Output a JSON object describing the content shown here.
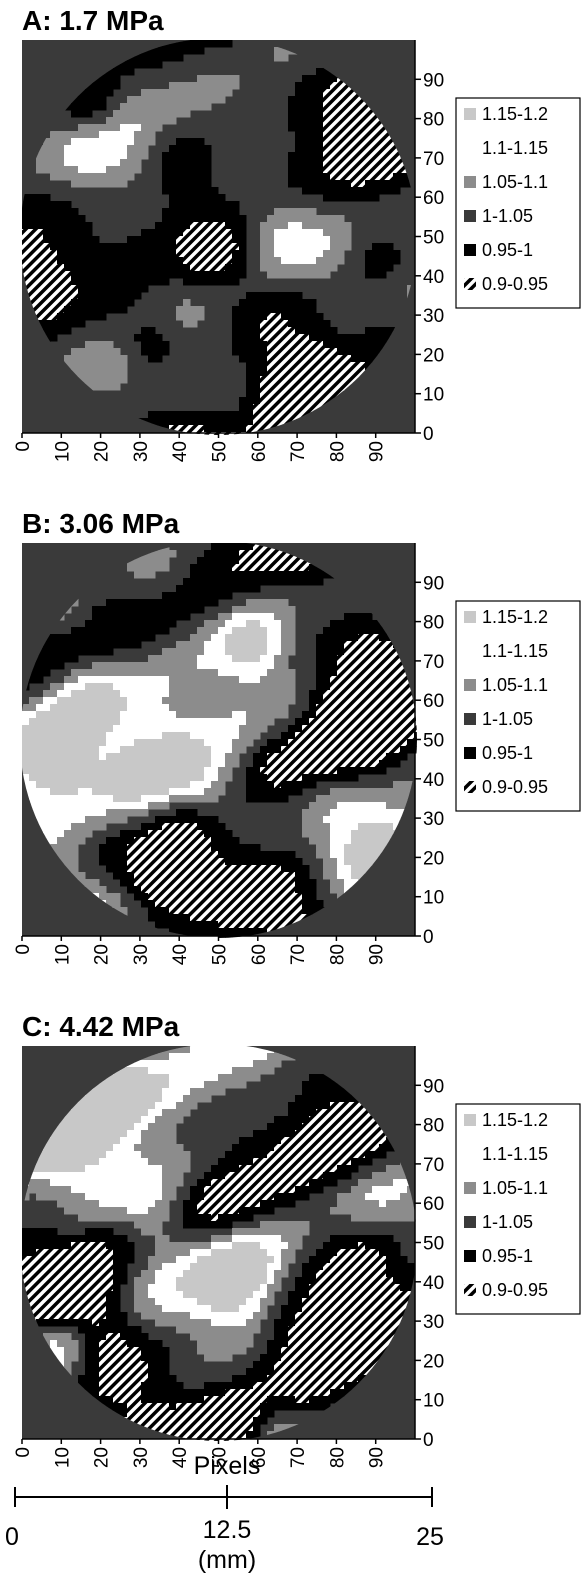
{
  "colors": {
    "background": "#3a3a3a",
    "levels": [
      "#c8c8c8",
      "#ffffff",
      "#8c8c8c",
      "#3a3a3a",
      "#000000"
    ],
    "hatch_fg": "#ffffff",
    "hatch_bg": "#000000"
  },
  "chart_data": [
    {
      "type": "heatmap",
      "title": "A: 1.7 MPa",
      "x_ticks": [
        "0",
        "10",
        "20",
        "30",
        "40",
        "50",
        "60",
        "70",
        "80",
        "90"
      ],
      "y_ticks": [
        "0",
        "10",
        "20",
        "30",
        "40",
        "50",
        "60",
        "70",
        "80",
        "90"
      ],
      "xlim": [
        0,
        100
      ],
      "ylim": [
        0,
        100
      ],
      "legend": {
        "position": "right",
        "entries": [
          {
            "label": "1.15-1.2",
            "color": "#c8c8c8"
          },
          {
            "label": "1.1-1.15",
            "color": "#ffffff"
          },
          {
            "label": "1.05-1.1",
            "color": "#8c8c8c"
          },
          {
            "label": "1-1.05",
            "color": "#3a3a3a"
          },
          {
            "label": "0.95-1",
            "color": "#000000"
          },
          {
            "label": "0.9-0.95",
            "color": "hatch"
          }
        ]
      },
      "stripe_intensity": 0.55,
      "seed": 3
    },
    {
      "type": "heatmap",
      "title": "B: 3.06 MPa",
      "x_ticks": [
        "0",
        "10",
        "20",
        "30",
        "40",
        "50",
        "60",
        "70",
        "80",
        "90"
      ],
      "y_ticks": [
        "0",
        "10",
        "20",
        "30",
        "40",
        "50",
        "60",
        "70",
        "80",
        "90"
      ],
      "xlim": [
        0,
        100
      ],
      "ylim": [
        0,
        100
      ],
      "legend": {
        "position": "right",
        "entries": [
          {
            "label": "1.15-1.2",
            "color": "#c8c8c8"
          },
          {
            "label": "1.1-1.15",
            "color": "#ffffff"
          },
          {
            "label": "1.05-1.1",
            "color": "#8c8c8c"
          },
          {
            "label": "1-1.05",
            "color": "#3a3a3a"
          },
          {
            "label": "0.95-1",
            "color": "#000000"
          },
          {
            "label": "0.9-0.95",
            "color": "hatch"
          }
        ]
      },
      "stripe_intensity": 0.85,
      "seed": 11
    },
    {
      "type": "heatmap",
      "title": "C: 4.42 MPa",
      "x_ticks": [
        "0",
        "10",
        "20",
        "30",
        "40",
        "50",
        "60",
        "70",
        "80",
        "90"
      ],
      "y_ticks": [
        "0",
        "10",
        "20",
        "30",
        "40",
        "50",
        "60",
        "70",
        "80",
        "90"
      ],
      "xlim": [
        0,
        100
      ],
      "ylim": [
        0,
        100
      ],
      "legend": {
        "position": "right",
        "entries": [
          {
            "label": "1.15-1.2",
            "color": "#c8c8c8"
          },
          {
            "label": "1.1-1.15",
            "color": "#ffffff"
          },
          {
            "label": "1.05-1.1",
            "color": "#8c8c8c"
          },
          {
            "label": "1-1.05",
            "color": "#3a3a3a"
          },
          {
            "label": "0.95-1",
            "color": "#000000"
          },
          {
            "label": "0.9-0.95",
            "color": "hatch"
          }
        ]
      },
      "stripe_intensity": 1.0,
      "seed": 23
    }
  ],
  "axis": {
    "xlabel": "Pixels",
    "scale_labels": [
      "0",
      "12.5",
      "25"
    ],
    "scale_unit": "(mm)"
  }
}
